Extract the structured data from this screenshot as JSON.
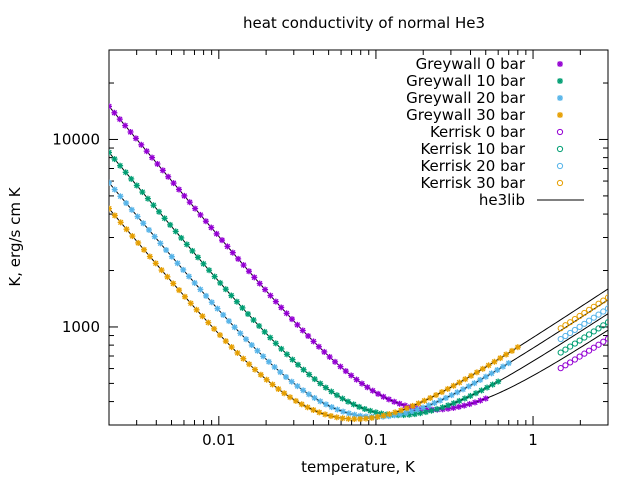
{
  "chart_data": {
    "type": "scatter",
    "title": "heat conductivity of normal He3",
    "xlabel": "temperature, K",
    "ylabel": "K, erg/s cm K",
    "xscale": "log",
    "yscale": "log",
    "xlim": [
      0.002,
      3.0
    ],
    "ylim": [
      300,
      30000
    ],
    "x_ticks": [
      {
        "value": 0.01,
        "label": "0.01"
      },
      {
        "value": 0.1,
        "label": "0.1"
      },
      {
        "value": 1,
        "label": "1"
      }
    ],
    "y_ticks": [
      {
        "value": 1000,
        "label": "1000"
      },
      {
        "value": 10000,
        "label": "10000"
      }
    ],
    "legend_position": "top-right",
    "colors": {
      "0 bar": "#9400d3",
      "10 bar": "#009e73",
      "20 bar": "#56b4e9",
      "30 bar": "#e69f00",
      "he3lib": "#000000"
    },
    "model": {
      "comment_free": true,
      "curves": [
        {
          "pressure": "0 bar",
          "a": 30.0,
          "b": 520
        },
        {
          "pressure": "10 bar",
          "a": 17.0,
          "b": 640
        },
        {
          "pressure": "20 bar",
          "a": 11.7,
          "b": 760
        },
        {
          "pressure": "30 bar",
          "a": 8.5,
          "b": 870
        }
      ]
    },
    "series": [
      {
        "name": "Greywall  0 bar",
        "marker": "filled-star",
        "color": "#9400d3",
        "pressure_index": 0,
        "x_range": [
          0.002,
          0.5
        ]
      },
      {
        "name": "Greywall 10 bar",
        "marker": "filled-star",
        "color": "#009e73",
        "pressure_index": 1,
        "x_range": [
          0.002,
          0.6
        ]
      },
      {
        "name": "Greywall 20 bar",
        "marker": "filled-star",
        "color": "#56b4e9",
        "pressure_index": 2,
        "x_range": [
          0.002,
          0.7
        ]
      },
      {
        "name": "Greywall 30 bar",
        "marker": "filled-star",
        "color": "#e69f00",
        "pressure_index": 3,
        "x_range": [
          0.002,
          0.8
        ]
      },
      {
        "name": "Kerrisk  0 bar",
        "marker": "open-circle",
        "color": "#9400d3",
        "pressure_index": 0,
        "x_range": [
          1.5,
          3.0
        ]
      },
      {
        "name": "Kerrisk 10 bar",
        "marker": "open-circle",
        "color": "#009e73",
        "pressure_index": 1,
        "x_range": [
          1.5,
          3.0
        ]
      },
      {
        "name": "Kerrisk 20 bar",
        "marker": "open-circle",
        "color": "#56b4e9",
        "pressure_index": 2,
        "x_range": [
          1.5,
          3.0
        ]
      },
      {
        "name": "Kerrisk 30 bar",
        "marker": "open-circle",
        "color": "#e69f00",
        "pressure_index": 3,
        "x_range": [
          1.5,
          3.0
        ]
      },
      {
        "name": "he3lib",
        "marker": "line",
        "color": "#000000",
        "pressure_index": -1,
        "x_range": [
          0.002,
          3.0
        ]
      }
    ]
  }
}
